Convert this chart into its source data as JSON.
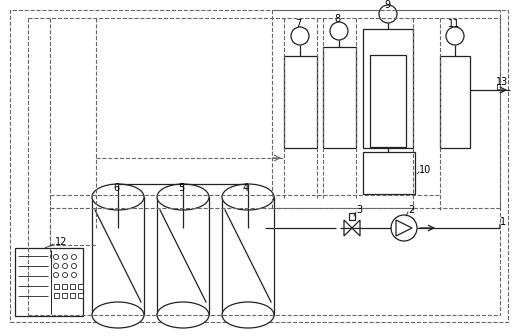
{
  "bg_color": "#ffffff",
  "line_color": "#222222",
  "dashed_color": "#666666",
  "fig_width": 5.2,
  "fig_height": 3.36,
  "dpi": 100
}
